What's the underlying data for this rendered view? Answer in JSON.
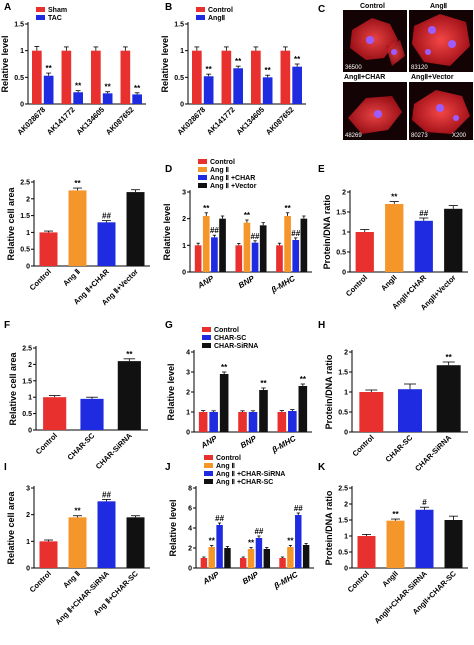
{
  "panel_c": {
    "letter": "C",
    "images": [
      {
        "title": "Control",
        "id": "36500"
      },
      {
        "title": "AngⅡ",
        "id": "83120"
      },
      {
        "title": "AngⅡ+CHAR",
        "id": "48269"
      },
      {
        "title": "AngⅡ+Vector",
        "id": "80273"
      }
    ],
    "magnification": "X200"
  },
  "chart_data": [
    {
      "panel": "A",
      "type": "bar",
      "ylabel": "Relative level",
      "ylim": [
        0,
        1.5
      ],
      "ticks": [
        0,
        0.5,
        1.0,
        1.5
      ],
      "categories": [
        "AK028678",
        "AK141772",
        "AK134605",
        "AK087652"
      ],
      "rotate_labels": true,
      "series": [
        {
          "name": "Sham",
          "color": "#e8302e",
          "values": [
            1.0,
            1.0,
            1.0,
            1.0
          ],
          "errors": [
            0.08,
            0.07,
            0.07,
            0.07
          ],
          "sig": [
            "",
            "",
            "",
            ""
          ]
        },
        {
          "name": "TAC",
          "color": "#1f2be0",
          "values": [
            0.53,
            0.22,
            0.2,
            0.18
          ],
          "errors": [
            0.05,
            0.03,
            0.03,
            0.03
          ],
          "sig": [
            "**",
            "**",
            "**",
            "**"
          ]
        }
      ],
      "legend": "top-left"
    },
    {
      "panel": "B",
      "type": "bar",
      "ylabel": "Relative level",
      "ylim": [
        0,
        1.5
      ],
      "ticks": [
        0,
        0.5,
        1.0,
        1.5
      ],
      "categories": [
        "AK028678",
        "AK141772",
        "AK134605",
        "AK087652"
      ],
      "rotate_labels": true,
      "series": [
        {
          "name": "Control",
          "color": "#e8302e",
          "values": [
            1.0,
            1.0,
            1.0,
            1.0
          ],
          "errors": [
            0.07,
            0.07,
            0.07,
            0.07
          ],
          "sig": [
            "",
            "",
            "",
            ""
          ]
        },
        {
          "name": "AngⅡ",
          "color": "#1f2be0",
          "values": [
            0.52,
            0.67,
            0.5,
            0.7
          ],
          "errors": [
            0.04,
            0.04,
            0.04,
            0.05
          ],
          "sig": [
            "**",
            "**",
            "**",
            "**"
          ]
        }
      ],
      "legend": "top-left"
    },
    {
      "panel": "D",
      "type": "bar",
      "ylabel": "Relative level",
      "ylim": [
        0,
        3
      ],
      "ticks": [
        0,
        1,
        2,
        3
      ],
      "categories": [
        "ANP",
        "BNP",
        "β-MHC"
      ],
      "italic_categories": true,
      "series": [
        {
          "name": "Control",
          "color": "#e8302e",
          "values": [
            1.0,
            1.0,
            1.0
          ],
          "errors": [
            0.08,
            0.07,
            0.08
          ],
          "sig": [
            "",
            "",
            ""
          ]
        },
        {
          "name": "Ang Ⅱ",
          "color": "#f5962a",
          "values": [
            2.1,
            1.85,
            2.1
          ],
          "errors": [
            0.12,
            0.1,
            0.12
          ],
          "sig": [
            "**",
            "**",
            "**"
          ]
        },
        {
          "name": "Ang Ⅱ +CHAR",
          "color": "#1f2be0",
          "values": [
            1.3,
            1.1,
            1.2
          ],
          "errors": [
            0.08,
            0.07,
            0.08
          ],
          "sig": [
            "##",
            "##",
            "##"
          ]
        },
        {
          "name": "Ang Ⅱ +Vector",
          "color": "#111111",
          "values": [
            2.0,
            1.75,
            2.0
          ],
          "errors": [
            0.1,
            0.1,
            0.1
          ],
          "sig": [
            "",
            "",
            ""
          ]
        }
      ],
      "legend": "top-left"
    },
    {
      "panel": "E",
      "type": "bar",
      "ylabel": "Protein/DNA ratio",
      "ylim": [
        0,
        2.0
      ],
      "ticks": [
        0,
        0.5,
        1.0,
        1.5,
        2.0
      ],
      "rotate_labels": true,
      "categories": [
        "Control",
        "AngII",
        "AngII+CHAR",
        "AngII+Vector"
      ],
      "values": [
        1.0,
        1.7,
        1.28,
        1.58
      ],
      "errors": [
        0.06,
        0.06,
        0.07,
        0.08
      ],
      "colors": [
        "#e8302e",
        "#f5962a",
        "#1f2be0",
        "#111111"
      ],
      "sig": [
        "",
        "**",
        "##",
        ""
      ]
    },
    {
      "panel": "F",
      "type": "bar",
      "ylabel": "Relative cell area",
      "ylim": [
        0,
        2.5
      ],
      "ticks": [
        0,
        0.5,
        1.0,
        1.5,
        2.0,
        2.5
      ],
      "rotate_labels": true,
      "categories": [
        "Control",
        "CHAR-SC",
        "CHAR-SiRNA"
      ],
      "values": [
        1.0,
        0.95,
        2.1
      ],
      "errors": [
        0.05,
        0.05,
        0.07
      ],
      "colors": [
        "#e8302e",
        "#1f2be0",
        "#111111"
      ],
      "sig": [
        "",
        "",
        "**"
      ]
    },
    {
      "panel": "G",
      "type": "bar",
      "ylabel": "Relative level",
      "ylim": [
        0,
        4
      ],
      "ticks": [
        0,
        1,
        2,
        3,
        4
      ],
      "categories": [
        "ANP",
        "BNP",
        "β-MHC"
      ],
      "italic_categories": true,
      "series": [
        {
          "name": "Control",
          "color": "#e8302e",
          "values": [
            1.0,
            1.0,
            1.0
          ],
          "errors": [
            0.07,
            0.06,
            0.07
          ],
          "sig": [
            "",
            "",
            ""
          ]
        },
        {
          "name": "CHAR-SC",
          "color": "#1f2be0",
          "values": [
            1.0,
            1.0,
            1.05
          ],
          "errors": [
            0.06,
            0.06,
            0.07
          ],
          "sig": [
            "",
            "",
            ""
          ]
        },
        {
          "name": "CHAR-SiRNA",
          "color": "#111111",
          "values": [
            2.9,
            2.1,
            2.3
          ],
          "errors": [
            0.1,
            0.1,
            0.1
          ],
          "sig": [
            "**",
            "**",
            "**"
          ]
        }
      ],
      "legend": "top-left"
    },
    {
      "panel": "H",
      "type": "bar",
      "ylabel": "Protein/DNA ratio",
      "ylim": [
        0,
        2.0
      ],
      "ticks": [
        0,
        0.5,
        1.0,
        1.5,
        2.0
      ],
      "rotate_labels": true,
      "categories": [
        "Control",
        "CHAR-SC",
        "CHAR-SiRNA"
      ],
      "values": [
        1.0,
        1.07,
        1.67
      ],
      "errors": [
        0.05,
        0.13,
        0.08
      ],
      "colors": [
        "#e8302e",
        "#1f2be0",
        "#111111"
      ],
      "sig": [
        "",
        "",
        "**"
      ]
    },
    {
      "panel": "I",
      "type": "bar",
      "ylabel": "Relative cell area",
      "ylim": [
        0,
        3
      ],
      "ticks": [
        0,
        1,
        2,
        3
      ],
      "rotate_labels": true,
      "categories": [
        "Control",
        "Ang Ⅱ",
        "Ang Ⅱ+CHAR-SiRNA",
        "Ang Ⅱ+CHAR-SC"
      ],
      "values": [
        1.0,
        1.9,
        2.5,
        1.9
      ],
      "errors": [
        0.05,
        0.06,
        0.07,
        0.06
      ],
      "colors": [
        "#e8302e",
        "#f5962a",
        "#1f2be0",
        "#111111"
      ],
      "sig": [
        "",
        "**",
        "##",
        ""
      ]
    },
    {
      "panel": "J",
      "type": "bar",
      "ylabel": "Relative level",
      "ylim": [
        0,
        8
      ],
      "ticks": [
        0,
        2,
        4,
        6,
        8
      ],
      "categories": [
        "ANP",
        "BNP",
        "β-MHC"
      ],
      "italic_categories": true,
      "series": [
        {
          "name": "Control",
          "color": "#e8302e",
          "values": [
            1.0,
            1.0,
            1.0
          ],
          "errors": [
            0.1,
            0.1,
            0.1
          ],
          "sig": [
            "",
            "",
            ""
          ]
        },
        {
          "name": "Ang Ⅱ",
          "color": "#f5962a",
          "values": [
            2.1,
            1.9,
            2.1
          ],
          "errors": [
            0.15,
            0.15,
            0.15
          ],
          "sig": [
            "**",
            "**",
            "**"
          ]
        },
        {
          "name": "Ang Ⅱ +CHAR-SiRNA",
          "color": "#1f2be0",
          "values": [
            4.3,
            3.0,
            5.3
          ],
          "errors": [
            0.2,
            0.2,
            0.2
          ],
          "sig": [
            "##",
            "##",
            "##"
          ]
        },
        {
          "name": "Ang Ⅱ +CHAR-SC",
          "color": "#111111",
          "values": [
            2.0,
            1.9,
            2.3
          ],
          "errors": [
            0.15,
            0.15,
            0.15
          ],
          "sig": [
            "",
            "",
            ""
          ]
        }
      ],
      "legend": "top-left"
    },
    {
      "panel": "K",
      "type": "bar",
      "ylabel": "Protein/DNA ratio",
      "ylim": [
        0,
        2.5
      ],
      "ticks": [
        0,
        0.5,
        1.0,
        1.5,
        2.0,
        2.5
      ],
      "rotate_labels": true,
      "categories": [
        "Control",
        "AngII",
        "AngII+CHAR-SiRNA",
        "AngII+CHAR-SC"
      ],
      "values": [
        1.0,
        1.48,
        1.82,
        1.5
      ],
      "errors": [
        0.05,
        0.05,
        0.08,
        0.12
      ],
      "colors": [
        "#e8302e",
        "#f5962a",
        "#1f2be0",
        "#111111"
      ],
      "sig": [
        "",
        "**",
        "#",
        ""
      ]
    },
    {
      "panel": "",
      "type": "bar",
      "ylabel": "Relative cell area",
      "ylim": [
        0,
        2.5
      ],
      "ticks": [
        0,
        0.5,
        1.0,
        1.5,
        2.0,
        2.5
      ],
      "rotate_labels": true,
      "categories": [
        "Control",
        "Ang Ⅱ",
        "Ang Ⅱ+CHAR",
        "Ang Ⅱ+Vector"
      ],
      "values": [
        1.0,
        2.25,
        1.3,
        2.2
      ],
      "errors": [
        0.04,
        0.07,
        0.05,
        0.07
      ],
      "colors": [
        "#e8302e",
        "#f5962a",
        "#1f2be0",
        "#111111"
      ],
      "sig": [
        "",
        "**",
        "##",
        ""
      ]
    }
  ]
}
